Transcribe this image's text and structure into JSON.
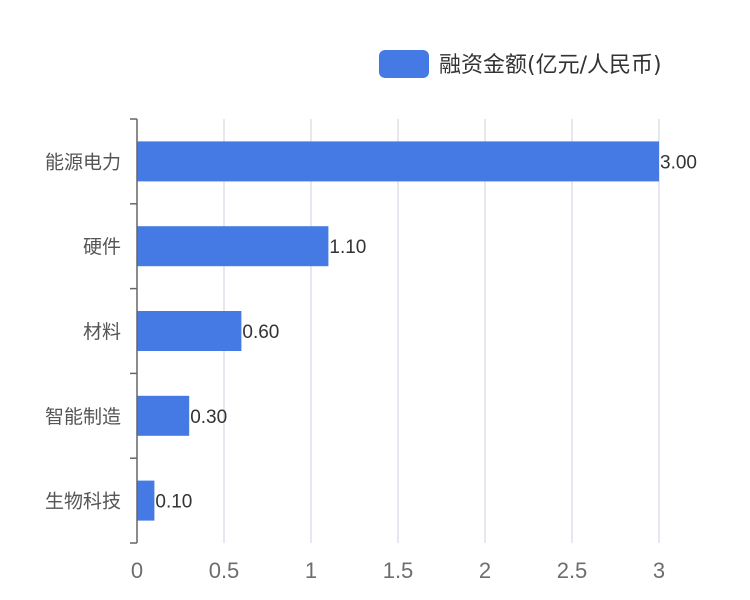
{
  "chart_data": {
    "type": "bar",
    "orientation": "horizontal",
    "categories": [
      "能源电力",
      "硬件",
      "材料",
      "智能制造",
      "生物科技"
    ],
    "series": [
      {
        "name": "融资金额(亿元/人民币)",
        "values": [
          3.0,
          1.1,
          0.6,
          0.3,
          0.1
        ],
        "labels": [
          "3.00",
          "1.10",
          "0.60",
          "0.30",
          "0.10"
        ],
        "color": "#4579e3"
      }
    ],
    "x_ticks": [
      "0",
      "0.5",
      "1",
      "1.5",
      "2",
      "2.5",
      "3"
    ],
    "xlim": [
      0,
      3
    ],
    "grid": "vertical",
    "legend_position": "top-right",
    "colors": {
      "bar": "#4579e3",
      "grid": "#dde1ec",
      "axis": "#666666"
    }
  }
}
